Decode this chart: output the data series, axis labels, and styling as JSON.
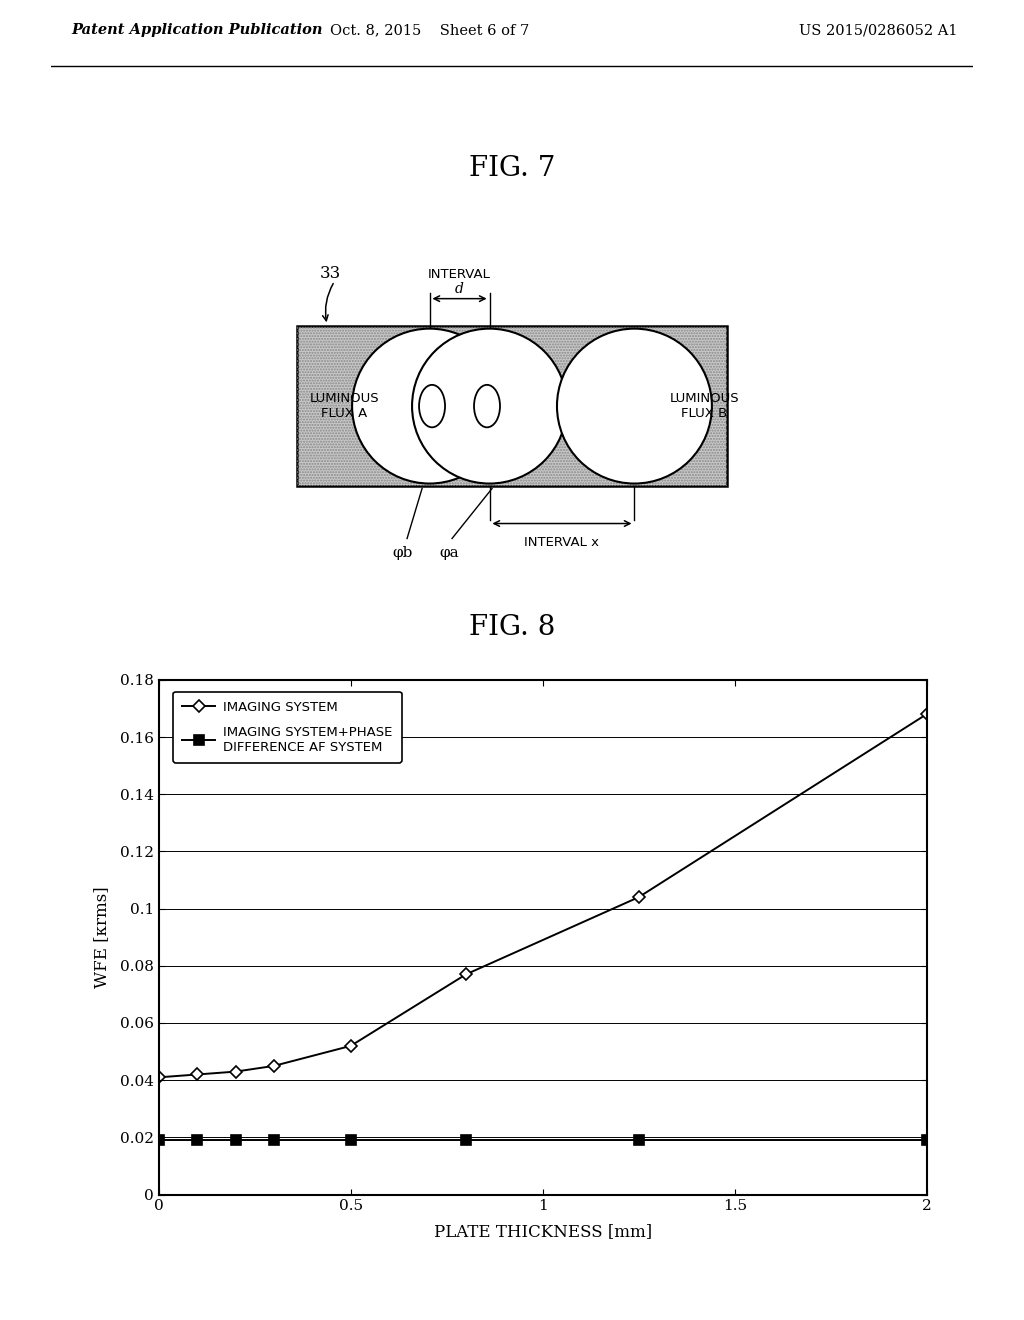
{
  "page_bg": "#ffffff",
  "header_left": "Patent Application Publication",
  "header_mid": "Oct. 8, 2015    Sheet 6 of 7",
  "header_right": "US 2015/0286052 A1",
  "fig7_title": "FIG. 7",
  "fig8_title": "FIG. 8",
  "fig8_xlabel": "PLATE THICKNESS [mm]",
  "fig8_ylabel": "WFE [κrms]",
  "fig8_xlim": [
    0,
    2
  ],
  "fig8_ylim": [
    0,
    0.18
  ],
  "fig8_yticks": [
    0,
    0.02,
    0.04,
    0.06,
    0.08,
    0.1,
    0.12,
    0.14,
    0.16,
    0.18
  ],
  "fig8_xticks": [
    0,
    0.5,
    1.0,
    1.5,
    2.0
  ],
  "fig8_xticklabels": [
    "0",
    "0.5",
    "1",
    "1.5",
    "2"
  ],
  "fig8_yticklabels": [
    "0",
    "0.02",
    "0.04",
    "0.06",
    "0.08",
    "0.1",
    "0.12",
    "0.14",
    "0.16",
    "0.18"
  ],
  "series1_x": [
    0.0,
    0.1,
    0.2,
    0.3,
    0.5,
    0.8,
    1.25,
    2.0
  ],
  "series1_y": [
    0.041,
    0.042,
    0.043,
    0.045,
    0.052,
    0.077,
    0.104,
    0.168
  ],
  "series1_label": "IMAGING SYSTEM",
  "series2_x": [
    0.0,
    0.1,
    0.2,
    0.3,
    0.5,
    0.8,
    1.25,
    2.0
  ],
  "series2_y": [
    0.019,
    0.019,
    0.019,
    0.019,
    0.019,
    0.019,
    0.019,
    0.019
  ],
  "series2_label": "IMAGING SYSTEM+PHASE\nDIFFERENCE AF SYSTEM"
}
